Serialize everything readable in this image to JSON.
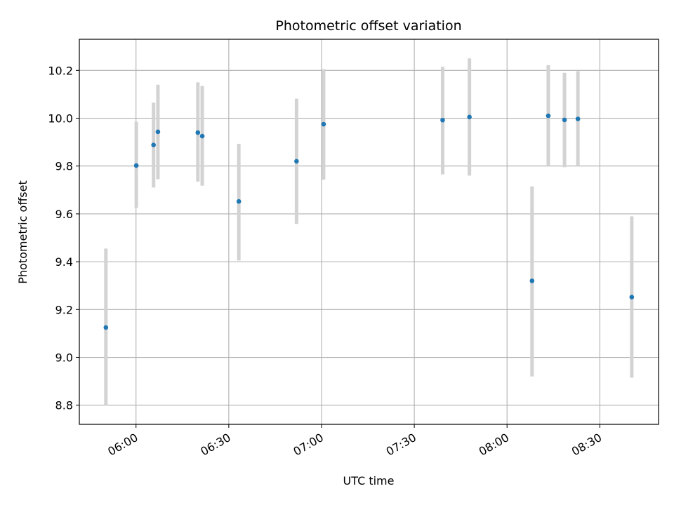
{
  "chart_data": {
    "type": "scatter",
    "title": "Photometric offset variation",
    "xlabel": "UTC time",
    "ylabel": "Photometric offset",
    "x_ticks": [
      "06:00",
      "06:30",
      "07:00",
      "07:30",
      "08:00",
      "08:30"
    ],
    "y_ticks": [
      "8.8",
      "9.0",
      "9.2",
      "9.4",
      "9.6",
      "9.8",
      "10.0",
      "10.2"
    ],
    "xlim": [
      "05:41:40",
      "08:49:00"
    ],
    "ylim": [
      8.72,
      10.33
    ],
    "grid": true,
    "colors": {
      "points": "#1f77b4",
      "errorbars": "#d3d3d3",
      "grid": "#b0b0b0"
    },
    "points": [
      {
        "time": "05:50:15",
        "value": 9.125,
        "low": 8.8,
        "high": 9.455
      },
      {
        "time": "06:00:05",
        "value": 9.802,
        "low": 9.625,
        "high": 9.985
      },
      {
        "time": "06:05:40",
        "value": 9.888,
        "low": 9.71,
        "high": 10.065
      },
      {
        "time": "06:07:05",
        "value": 9.943,
        "low": 9.745,
        "high": 10.14
      },
      {
        "time": "06:20:00",
        "value": 9.94,
        "low": 9.735,
        "high": 10.15
      },
      {
        "time": "06:21:25",
        "value": 9.925,
        "low": 9.718,
        "high": 10.135
      },
      {
        "time": "06:33:15",
        "value": 9.652,
        "low": 9.405,
        "high": 9.893
      },
      {
        "time": "06:51:55",
        "value": 9.82,
        "low": 9.558,
        "high": 10.082
      },
      {
        "time": "07:00:40",
        "value": 9.975,
        "low": 9.743,
        "high": 10.205
      },
      {
        "time": "07:39:10",
        "value": 9.992,
        "low": 9.765,
        "high": 10.215
      },
      {
        "time": "07:47:50",
        "value": 10.005,
        "low": 9.76,
        "high": 10.25
      },
      {
        "time": "08:08:05",
        "value": 9.32,
        "low": 8.92,
        "high": 9.715
      },
      {
        "time": "08:13:20",
        "value": 10.01,
        "low": 9.8,
        "high": 10.222
      },
      {
        "time": "08:18:35",
        "value": 9.993,
        "low": 9.795,
        "high": 10.19
      },
      {
        "time": "08:22:55",
        "value": 9.997,
        "low": 9.8,
        "high": 10.197
      },
      {
        "time": "08:40:20",
        "value": 9.252,
        "low": 8.915,
        "high": 9.59
      }
    ]
  }
}
